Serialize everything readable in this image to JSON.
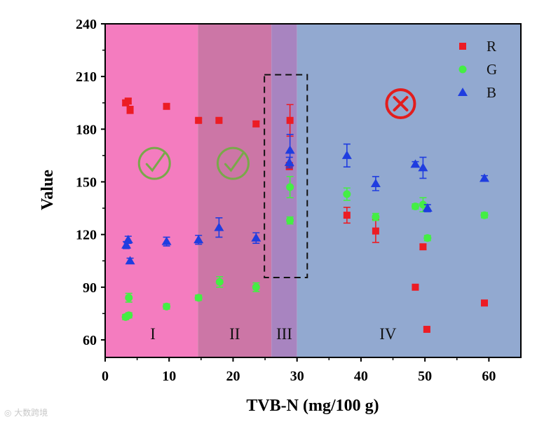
{
  "chart_data": {
    "type": "scatter",
    "title": "",
    "xlabel": "TVB-N (mg/100 g)",
    "ylabel": "Value",
    "xlim": [
      0,
      65
    ],
    "ylim": [
      50,
      240
    ],
    "xticks": [
      0,
      10,
      20,
      30,
      40,
      50,
      60
    ],
    "yticks": [
      60,
      90,
      120,
      150,
      180,
      210,
      240
    ],
    "grid": false,
    "legend_position": "top-right",
    "regions": [
      {
        "label": "I",
        "x_range": [
          0,
          14.5
        ],
        "color": "#f47cbf"
      },
      {
        "label": "II",
        "x_range": [
          14.5,
          26
        ],
        "color": "#cc76a6"
      },
      {
        "label": "III",
        "x_range": [
          26,
          30
        ],
        "color": "#a884c0"
      },
      {
        "label": "IV",
        "x_range": [
          30,
          65
        ],
        "color": "#92a9d0"
      }
    ],
    "annotations": {
      "check_marks": [
        {
          "x": 7.7,
          "y": 160.5
        },
        {
          "x": 20.0,
          "y": 160.5
        }
      ],
      "cross_mark": {
        "x": 46.2,
        "y": 194.5
      },
      "dashed_box": {
        "x_range": [
          24.9,
          31.6
        ],
        "y_range": [
          95.5,
          211
        ]
      }
    },
    "series": [
      {
        "name": "R",
        "color": "#ec1c24",
        "marker": "square",
        "points": [
          {
            "x": 3.2,
            "y": 195,
            "err": 1.5
          },
          {
            "x": 3.6,
            "y": 196,
            "err": 1.5
          },
          {
            "x": 3.9,
            "y": 191,
            "err": 2
          },
          {
            "x": 9.6,
            "y": 193,
            "err": 1.5
          },
          {
            "x": 14.6,
            "y": 185,
            "err": 1
          },
          {
            "x": 17.8,
            "y": 185,
            "err": 1
          },
          {
            "x": 23.6,
            "y": 183,
            "err": 1.5
          },
          {
            "x": 28.8,
            "y": 159,
            "err": 2
          },
          {
            "x": 28.9,
            "y": 185,
            "err": 9
          },
          {
            "x": 37.8,
            "y": 131,
            "err": 4.5
          },
          {
            "x": 42.3,
            "y": 122,
            "err": 6.5
          },
          {
            "x": 48.5,
            "y": 90,
            "err": 1
          },
          {
            "x": 49.7,
            "y": 113,
            "err": 1.5
          },
          {
            "x": 50.3,
            "y": 66,
            "err": 1
          },
          {
            "x": 59.3,
            "y": 81,
            "err": 1.5
          }
        ]
      },
      {
        "name": "G",
        "color": "#44ee44",
        "marker": "circle",
        "points": [
          {
            "x": 3.2,
            "y": 73,
            "err": 1.5
          },
          {
            "x": 3.7,
            "y": 74,
            "err": 1.5
          },
          {
            "x": 3.7,
            "y": 84,
            "err": 2.5
          },
          {
            "x": 9.6,
            "y": 79,
            "err": 1.5
          },
          {
            "x": 14.6,
            "y": 84,
            "err": 1.5
          },
          {
            "x": 17.9,
            "y": 93,
            "err": 3
          },
          {
            "x": 23.6,
            "y": 90,
            "err": 2.5
          },
          {
            "x": 28.9,
            "y": 128,
            "err": 2
          },
          {
            "x": 28.9,
            "y": 147,
            "err": 6
          },
          {
            "x": 37.8,
            "y": 143,
            "err": 3.5
          },
          {
            "x": 42.3,
            "y": 130,
            "err": 2
          },
          {
            "x": 48.5,
            "y": 136,
            "err": 1.5
          },
          {
            "x": 49.7,
            "y": 137,
            "err": 4
          },
          {
            "x": 50.4,
            "y": 118,
            "err": 1.5
          },
          {
            "x": 59.3,
            "y": 131,
            "err": 1.5
          }
        ]
      },
      {
        "name": "B",
        "color": "#1f3de0",
        "marker": "triangle",
        "points": [
          {
            "x": 3.3,
            "y": 114,
            "err": 2
          },
          {
            "x": 3.6,
            "y": 117,
            "err": 2
          },
          {
            "x": 3.9,
            "y": 105,
            "err": 1.5
          },
          {
            "x": 9.6,
            "y": 116,
            "err": 2.5
          },
          {
            "x": 14.6,
            "y": 117,
            "err": 2.5
          },
          {
            "x": 17.8,
            "y": 124,
            "err": 5.5
          },
          {
            "x": 23.6,
            "y": 118,
            "err": 3
          },
          {
            "x": 28.8,
            "y": 161,
            "err": 3
          },
          {
            "x": 28.9,
            "y": 168,
            "err": 9
          },
          {
            "x": 37.8,
            "y": 165,
            "err": 6.5
          },
          {
            "x": 42.3,
            "y": 149,
            "err": 4
          },
          {
            "x": 48.5,
            "y": 160,
            "err": 1.5
          },
          {
            "x": 49.7,
            "y": 158,
            "err": 6
          },
          {
            "x": 50.4,
            "y": 135,
            "err": 2
          },
          {
            "x": 59.3,
            "y": 152,
            "err": 1.5
          }
        ]
      }
    ]
  },
  "watermark": "大数跨境"
}
